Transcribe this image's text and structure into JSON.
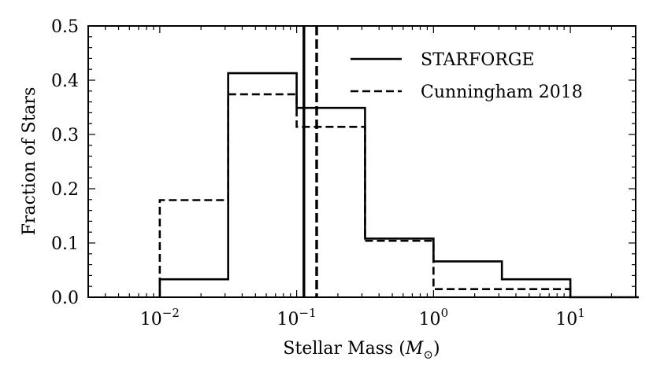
{
  "chart_data": {
    "type": "histogram",
    "xscale": "log",
    "xlim": [
      0.003,
      30
    ],
    "ylim": [
      0,
      0.5
    ],
    "xlabel": "Stellar Mass (",
    "xlabel_symbol": "M",
    "xlabel_subscript": "⊙",
    "xlabel_close": ")",
    "ylabel": "Fraction of Stars",
    "x_major_ticks": [
      {
        "value": 0.01,
        "base": "10",
        "exp": "−2"
      },
      {
        "value": 0.1,
        "base": "10",
        "exp": "−1"
      },
      {
        "value": 1,
        "base": "10",
        "exp": "0"
      },
      {
        "value": 10,
        "base": "10",
        "exp": "1"
      }
    ],
    "y_ticks": [
      {
        "value": 0.0,
        "label": "0.0"
      },
      {
        "value": 0.1,
        "label": "0.1"
      },
      {
        "value": 0.2,
        "label": "0.2"
      },
      {
        "value": 0.3,
        "label": "0.3"
      },
      {
        "value": 0.4,
        "label": "0.4"
      },
      {
        "value": 0.5,
        "label": "0.5"
      }
    ],
    "bin_edges": [
      0.01,
      0.0316,
      0.1,
      0.316,
      1,
      3.16,
      10,
      31.6
    ],
    "legend_position": "top-right",
    "series": [
      {
        "name": "STARFORGE",
        "linestyle": "solid",
        "values": [
          0.033,
          0.413,
          0.349,
          0.108,
          0.066,
          0.033,
          0.0
        ],
        "vline": 0.113
      },
      {
        "name": "Cunningham 2018",
        "linestyle": "dashed",
        "values": [
          0.179,
          0.374,
          0.314,
          0.104,
          0.015,
          0.015
        ],
        "vline": 0.14
      }
    ]
  }
}
